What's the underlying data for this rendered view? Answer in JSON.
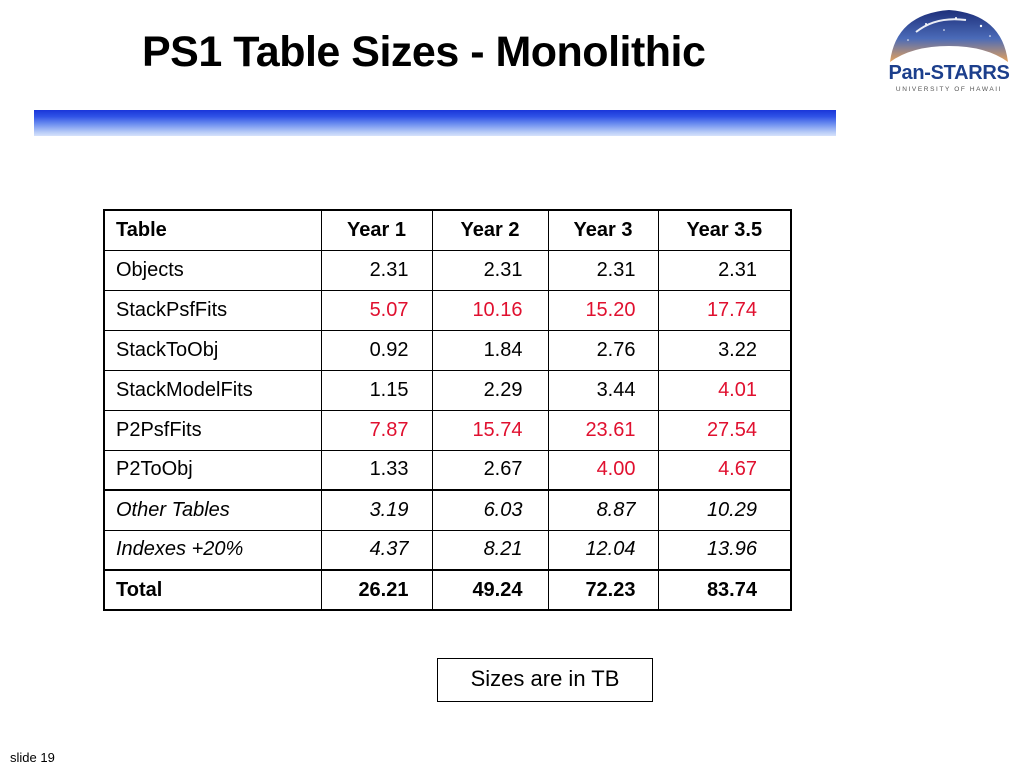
{
  "slide": {
    "title": "PS1 Table Sizes - Monolithic",
    "note": "Sizes are in TB",
    "slide_number": "slide 19"
  },
  "logo": {
    "name": "Pan-STARRS",
    "subtitle": "UNIVERSITY OF HAWAII"
  },
  "colors": {
    "title_bar": "#2f52e6",
    "highlight": "#e0102f",
    "logo_text": "#1c3f8c"
  },
  "table": {
    "headers": [
      "Table",
      "Year 1",
      "Year 2",
      "Year 3",
      "Year 3.5"
    ],
    "rows": [
      {
        "name": "Objects",
        "values": [
          "2.31",
          "2.31",
          "2.31",
          "2.31"
        ],
        "red": [
          false,
          false,
          false,
          false
        ]
      },
      {
        "name": "StackPsfFits",
        "values": [
          "5.07",
          "10.16",
          "15.20",
          "17.74"
        ],
        "red": [
          true,
          true,
          true,
          true
        ]
      },
      {
        "name": "StackToObj",
        "values": [
          "0.92",
          "1.84",
          "2.76",
          "3.22"
        ],
        "red": [
          false,
          false,
          false,
          false
        ]
      },
      {
        "name": "StackModelFits",
        "values": [
          "1.15",
          "2.29",
          "3.44",
          "4.01"
        ],
        "red": [
          false,
          false,
          false,
          true
        ]
      },
      {
        "name": "P2PsfFits",
        "values": [
          "7.87",
          "15.74",
          "23.61",
          "27.54"
        ],
        "red": [
          true,
          true,
          true,
          true
        ]
      },
      {
        "name": "P2ToObj",
        "values": [
          "1.33",
          "2.67",
          "4.00",
          "4.67"
        ],
        "red": [
          false,
          false,
          true,
          true
        ]
      },
      {
        "name": "Other Tables",
        "values": [
          "3.19",
          "6.03",
          "8.87",
          "10.29"
        ],
        "red": [
          false,
          false,
          false,
          false
        ]
      },
      {
        "name": "Indexes  +20%",
        "values": [
          "4.37",
          "8.21",
          "12.04",
          "13.96"
        ],
        "red": [
          false,
          false,
          false,
          false
        ]
      }
    ],
    "total": {
      "name": "Total",
      "values": [
        "26.21",
        "49.24",
        "72.23",
        "83.74"
      ]
    }
  }
}
